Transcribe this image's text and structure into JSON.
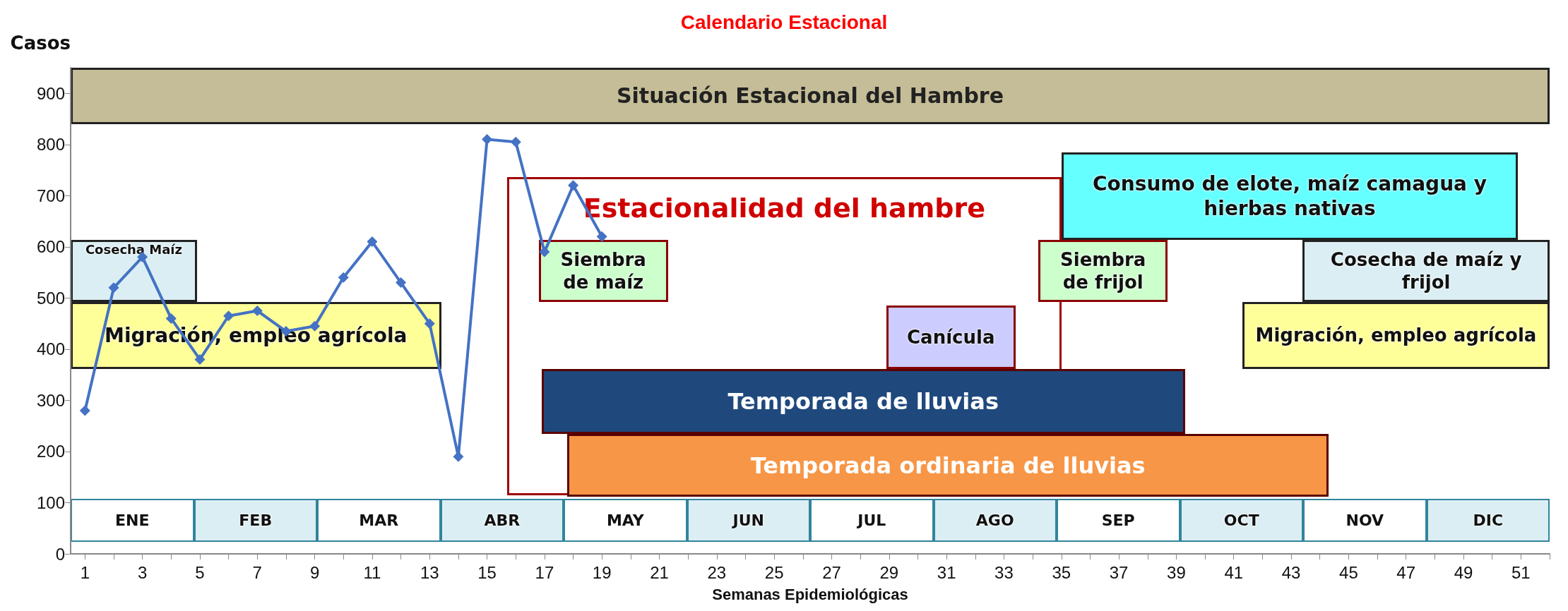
{
  "chart_data": {
    "type": "line",
    "title": "Calendario Estacional",
    "xlabel": "Semanas Epidemiológicas",
    "ylabel": "Casos",
    "x": [
      1,
      2,
      3,
      4,
      5,
      6,
      7,
      8,
      9,
      10,
      11,
      12,
      13,
      14,
      15,
      16,
      17,
      18,
      19
    ],
    "series": [
      {
        "color": "#4472c4",
        "values": [
          280,
          520,
          580,
          460,
          380,
          465,
          475,
          435,
          445,
          540,
          610,
          530,
          450,
          190,
          810,
          805,
          590,
          720,
          620
        ]
      }
    ],
    "xlim": [
      0.5,
      52
    ],
    "xticks": [
      1,
      {
        "value": 2,
        "label": null
      },
      3,
      {
        "value": 4,
        "label": null
      },
      5,
      {
        "value": 6,
        "label": null
      },
      7,
      {
        "value": 8,
        "label": null
      },
      9,
      {
        "value": 10,
        "label": null
      },
      11,
      {
        "value": 12,
        "label": null
      },
      13,
      {
        "value": 14,
        "label": null
      },
      15,
      {
        "value": 16,
        "label": null
      },
      17,
      {
        "value": 18,
        "label": null
      },
      19,
      {
        "value": 20,
        "label": null
      },
      21,
      {
        "value": 22,
        "label": null
      },
      23,
      {
        "value": 24,
        "label": null
      },
      25,
      {
        "value": 26,
        "label": null
      },
      27,
      {
        "value": 28,
        "label": null
      },
      29,
      {
        "value": 30,
        "label": null
      },
      31,
      {
        "value": 32,
        "label": null
      },
      33,
      {
        "value": 34,
        "label": null
      },
      35,
      {
        "value": 36,
        "label": null
      },
      37,
      {
        "value": 38,
        "label": null
      },
      39,
      {
        "value": 40,
        "label": null
      },
      41,
      {
        "value": 42,
        "label": null
      },
      43,
      {
        "value": 44,
        "label": null
      },
      45,
      {
        "value": 46,
        "label": null
      },
      47,
      {
        "value": 48,
        "label": null
      },
      49,
      {
        "value": 50,
        "label": null
      },
      51,
      {
        "value": 52,
        "label": null
      }
    ],
    "ylim": [
      0,
      950
    ],
    "yticks": [
      0,
      100,
      200,
      300,
      400,
      500,
      600,
      700,
      800,
      900
    ],
    "grid": false,
    "marker": "diamond",
    "line_style": "solid",
    "annotations": [
      "Situación Estacional del Hambre",
      "Estacionalidad del hambre",
      "Cosecha Maíz",
      "Migración, empleo agrícola",
      "Siembra de maíz",
      "Canícula",
      "Temporada de lluvias",
      "Temporada ordinaria de lluvias",
      "Siembra de frijol",
      "Consumo de elote, maíz camagua y hierbas nativas",
      "Cosecha de maíz y frijol",
      "Migración, empleo agrícola",
      "ENE",
      "FEB",
      "MAR",
      "ABR",
      "MAY",
      "JUN",
      "JUL",
      "AGO",
      "SEP",
      "OCT",
      "NOV",
      "DIC"
    ]
  }
}
